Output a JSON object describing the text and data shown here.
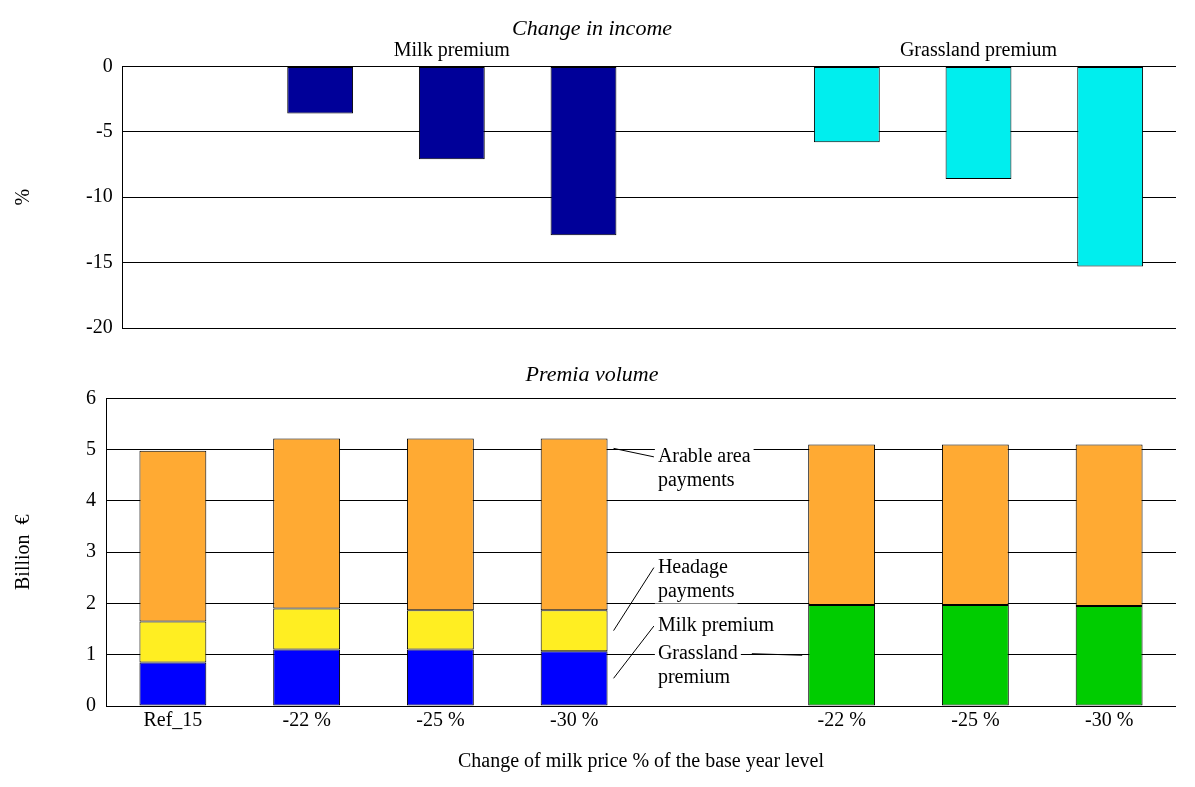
{
  "chart_data": [
    {
      "type": "bar",
      "title": "Change in income",
      "ylabel": "%",
      "categories": [
        null,
        null,
        null,
        null,
        null,
        null,
        null,
        null
      ],
      "series": [
        {
          "name": "Milk premium",
          "color": "#000099",
          "values": [
            null,
            -3.6,
            -7.1,
            -12.9,
            null,
            null,
            null,
            null
          ]
        },
        {
          "name": "Grassland premium",
          "color": "#00eeee",
          "values": [
            null,
            null,
            null,
            null,
            null,
            -5.8,
            -8.6,
            -15.3
          ]
        }
      ],
      "ylim": [
        -20,
        0
      ],
      "yticks": [
        -20,
        -15,
        -10,
        -5,
        0
      ],
      "grid": "y",
      "legend": false
    },
    {
      "type": "bar",
      "title": "Premia volume",
      "xlabel": "Change of milk price % of the base year level",
      "ylabel": "Billion  €",
      "categories": [
        "Ref_15",
        "-22 %",
        "-25 %",
        "-30 %",
        null,
        "-22 %",
        "-25 %",
        "-30 %"
      ],
      "stacked": true,
      "series": [
        {
          "name": "Grassland premium",
          "color": "#00cc00",
          "values": [
            null,
            null,
            null,
            null,
            null,
            1.97,
            1.97,
            1.95
          ]
        },
        {
          "name": "Milk premium",
          "color": "#0000ff",
          "values": [
            0.85,
            1.1,
            1.1,
            1.07,
            null,
            null,
            null,
            null
          ]
        },
        {
          "name": "Headage payments",
          "color": "#ffee22",
          "values": [
            0.8,
            0.8,
            0.77,
            0.8,
            null,
            null,
            null,
            null
          ]
        },
        {
          "name": "Arable area payments",
          "color": "#ffaa33",
          "values": [
            3.33,
            3.32,
            3.35,
            3.35,
            null,
            3.13,
            3.13,
            3.15
          ]
        }
      ],
      "ylim": [
        0,
        6
      ],
      "yticks": [
        0,
        1,
        2,
        3,
        4,
        5,
        6
      ],
      "grid": "y",
      "legend": false
    }
  ]
}
